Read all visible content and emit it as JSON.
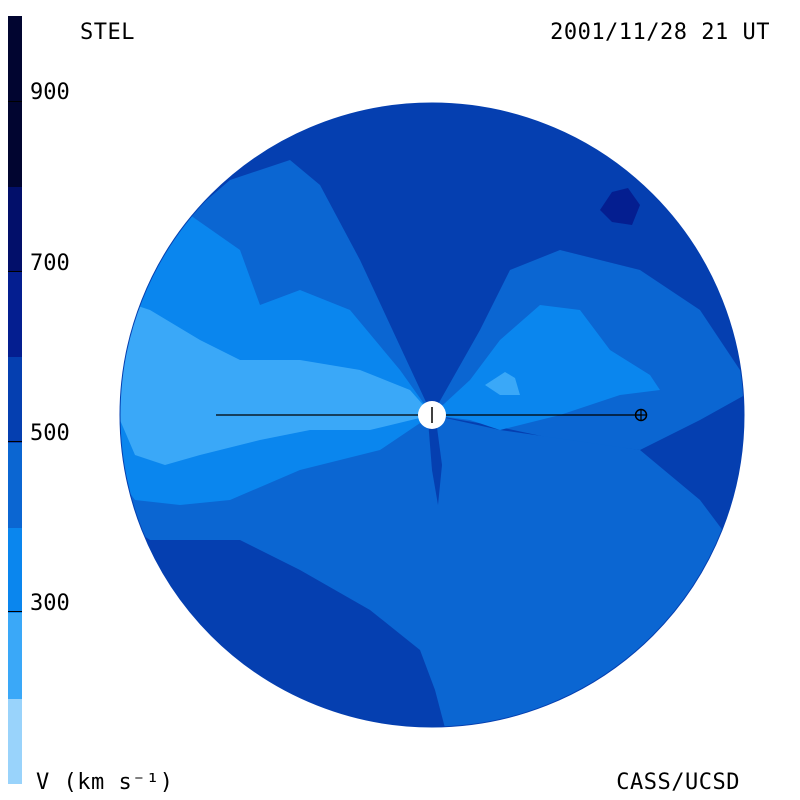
{
  "header": {
    "left_label": "STEL",
    "right_label": "2001/11/28 21 UT"
  },
  "footer": {
    "left_label": "V (km s⁻¹)",
    "right_label": "CASS/UCSD"
  },
  "colorbar": {
    "title": "V (km s⁻¹)",
    "ticks": [
      "900",
      "700",
      "500",
      "300"
    ],
    "tick_values": [
      900,
      700,
      500,
      300
    ],
    "range": [
      100,
      1000
    ],
    "levels": [
      {
        "min": 100,
        "max": 200,
        "color": "#99d3fb"
      },
      {
        "min": 200,
        "max": 300,
        "color": "#3aa8f8"
      },
      {
        "min": 300,
        "max": 400,
        "color": "#0a86ee"
      },
      {
        "min": 400,
        "max": 500,
        "color": "#0b66d2"
      },
      {
        "min": 500,
        "max": 600,
        "color": "#053fb0"
      },
      {
        "min": 600,
        "max": 700,
        "color": "#041e90"
      },
      {
        "min": 700,
        "max": 800,
        "color": "#020f6a"
      },
      {
        "min": 800,
        "max": 1000,
        "color": "#010530"
      }
    ]
  },
  "map": {
    "kind": "solar wind velocity synoptic view",
    "observer_marker": "earth-symbol",
    "central_body": "sun"
  }
}
